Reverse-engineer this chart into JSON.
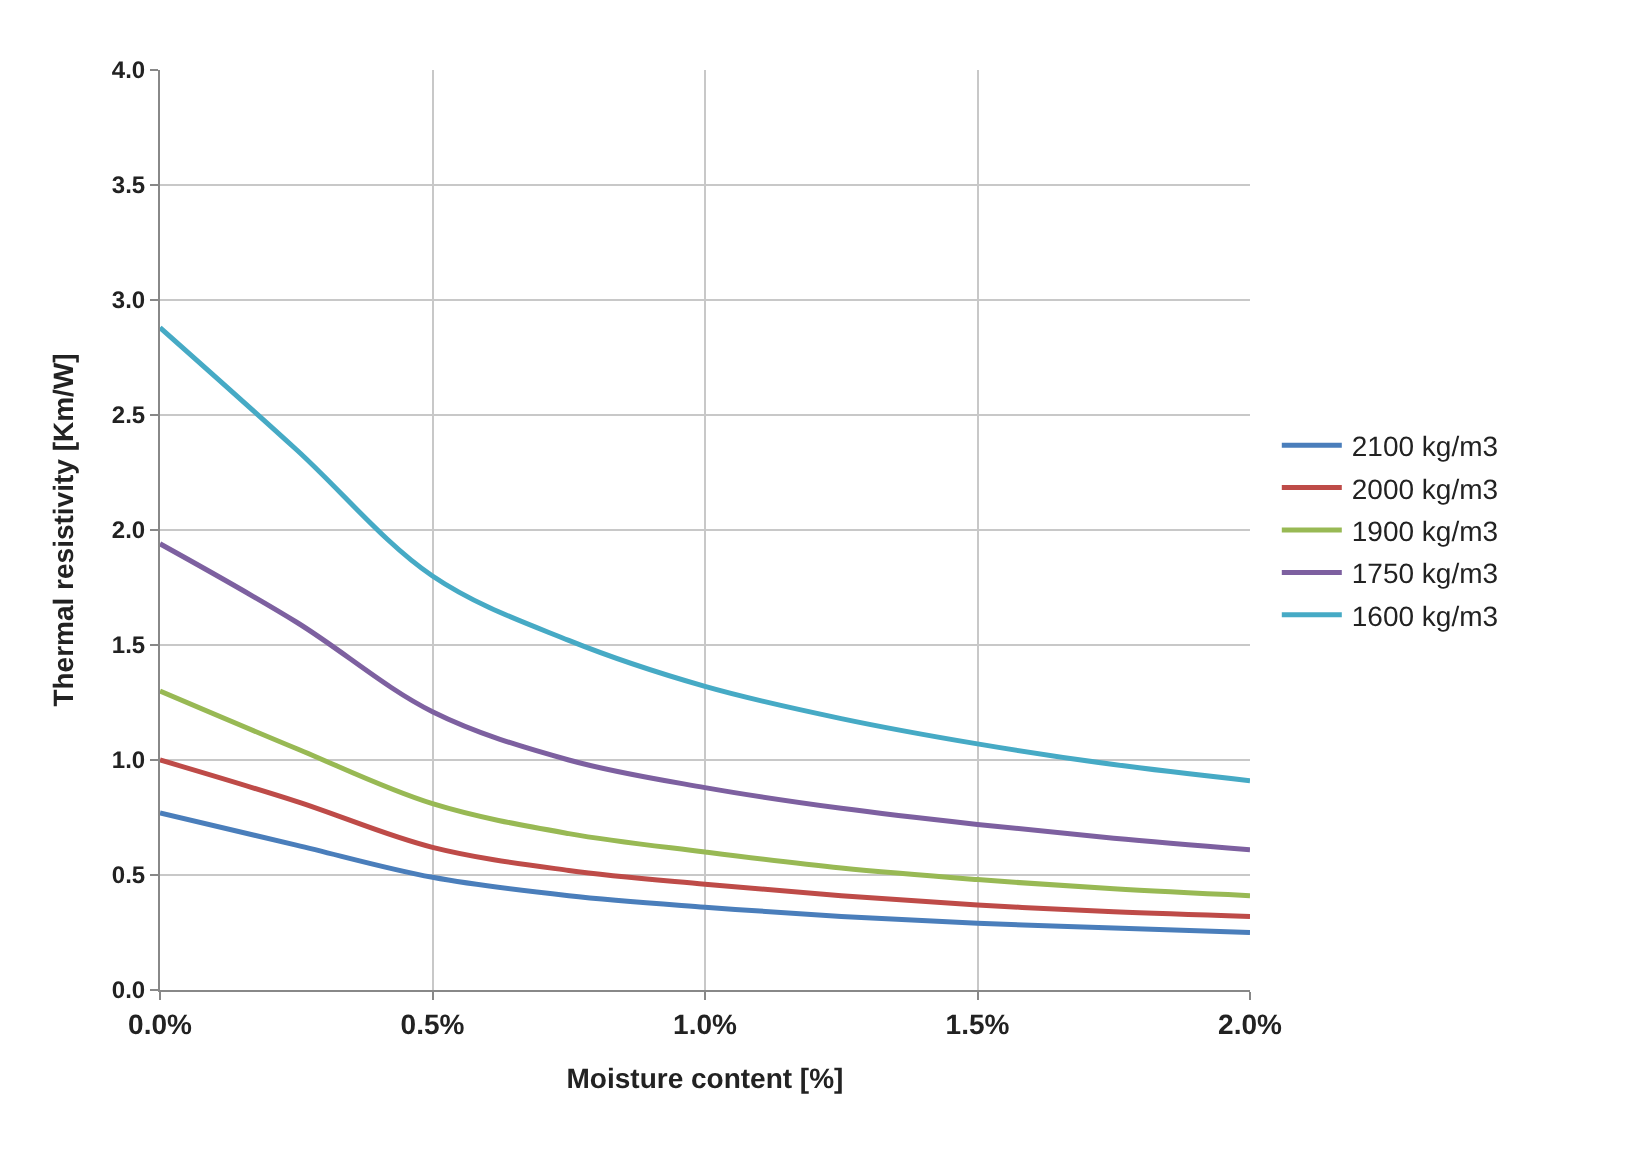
{
  "chart_data": {
    "type": "line",
    "xlabel": "Moisture content [%]",
    "ylabel": "Thermal resistivity [Km/W]",
    "x": [
      0,
      0.25,
      0.5,
      0.75,
      1.0,
      1.25,
      1.5,
      1.75,
      2.0
    ],
    "xlim": [
      0,
      2.0
    ],
    "xticks": [
      {
        "value": 0,
        "label": "0.0%"
      },
      {
        "value": 0.5,
        "label": "0.5%"
      },
      {
        "value": 1.0,
        "label": "1.0%"
      },
      {
        "value": 1.5,
        "label": "1.5%"
      },
      {
        "value": 2.0,
        "label": "2.0%"
      }
    ],
    "ylim": [
      0,
      4.0
    ],
    "yticks": [
      {
        "value": 0,
        "label": "0.0"
      },
      {
        "value": 0.5,
        "label": "0.5"
      },
      {
        "value": 1.0,
        "label": "1.0"
      },
      {
        "value": 1.5,
        "label": "1.5"
      },
      {
        "value": 2.0,
        "label": "2.0"
      },
      {
        "value": 2.5,
        "label": "2.5"
      },
      {
        "value": 3.0,
        "label": "3.0"
      },
      {
        "value": 3.5,
        "label": "3.5"
      },
      {
        "value": 4.0,
        "label": "4.0"
      }
    ],
    "grid": true,
    "legend": "right",
    "marker": "none",
    "line_style": "solid",
    "series": [
      {
        "name": "2100 kg/m3",
        "color": "#4a7ebb",
        "values": [
          0.77,
          0.63,
          0.49,
          0.41,
          0.36,
          0.32,
          0.29,
          0.27,
          0.25
        ]
      },
      {
        "name": "2000 kg/m3",
        "color": "#be4b48",
        "values": [
          1.0,
          0.82,
          0.62,
          0.52,
          0.46,
          0.41,
          0.37,
          0.34,
          0.32
        ]
      },
      {
        "name": "1900 kg/m3",
        "color": "#98b954",
        "values": [
          1.3,
          1.05,
          0.81,
          0.68,
          0.6,
          0.53,
          0.48,
          0.44,
          0.41
        ]
      },
      {
        "name": "1750 kg/m3",
        "color": "#7d60a0",
        "values": [
          1.94,
          1.6,
          1.21,
          1.0,
          0.88,
          0.79,
          0.72,
          0.66,
          0.61
        ]
      },
      {
        "name": "1600 kg/m3",
        "color": "#46aac5",
        "values": [
          2.88,
          2.35,
          1.8,
          1.52,
          1.32,
          1.18,
          1.07,
          0.98,
          0.91
        ]
      }
    ]
  }
}
